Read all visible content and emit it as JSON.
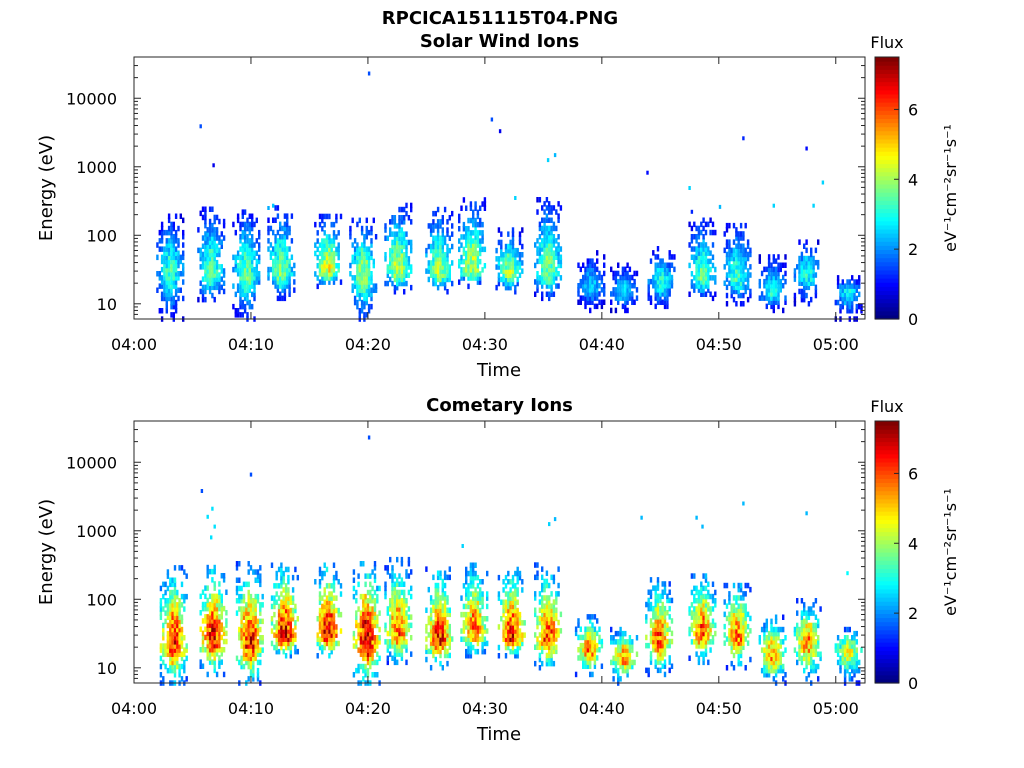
{
  "figure": {
    "title": "RPCICA151115T04.PNG"
  },
  "chart_data": [
    {
      "type": "heatmap",
      "title": "Solar Wind Ions",
      "xlabel": "Time",
      "ylabel": "Energy (eV)",
      "x_tick_labels": [
        "04:00",
        "04:10",
        "04:20",
        "04:30",
        "04:40",
        "04:50",
        "05:00"
      ],
      "x_ticks_minutes": [
        0,
        10,
        20,
        30,
        40,
        50,
        60
      ],
      "xlim_minutes": [
        0,
        62.5
      ],
      "y_scale": "log",
      "ylim": [
        6,
        40000
      ],
      "y_tick_labels": [
        "10",
        "100",
        "1000",
        "10000"
      ],
      "y_ticks": [
        10,
        100,
        1000,
        10000
      ],
      "colorbar": {
        "label": "Flux",
        "unit": "eV⁻¹cm⁻²sr⁻¹s⁻¹",
        "range": [
          0,
          7.5
        ],
        "tick_labels": [
          "0",
          "2",
          "4",
          "6"
        ],
        "ticks": [
          0,
          2,
          4,
          6
        ],
        "colormap": "jet"
      },
      "bursts": [
        {
          "t": 3.0,
          "center": 30,
          "low": 6,
          "high": 200,
          "peak": 3.2
        },
        {
          "t": 6.5,
          "center": 30,
          "low": 10,
          "high": 270,
          "peak": 3.5
        },
        {
          "t": 9.5,
          "center": 28,
          "low": 6,
          "high": 240,
          "peak": 3.6
        },
        {
          "t": 12.5,
          "center": 28,
          "low": 12,
          "high": 270,
          "peak": 3.8
        },
        {
          "t": 16.5,
          "center": 30,
          "low": 18,
          "high": 210,
          "peak": 4.5
        },
        {
          "t": 19.5,
          "center": 28,
          "low": 6,
          "high": 180,
          "peak": 4.0
        },
        {
          "t": 22.5,
          "center": 30,
          "low": 15,
          "high": 300,
          "peak": 4.2
        },
        {
          "t": 26.0,
          "center": 28,
          "low": 15,
          "high": 250,
          "peak": 4.0
        },
        {
          "t": 28.8,
          "center": 32,
          "low": 18,
          "high": 330,
          "peak": 4.3
        },
        {
          "t": 32.0,
          "center": 30,
          "low": 15,
          "high": 120,
          "peak": 4.0
        },
        {
          "t": 35.3,
          "center": 30,
          "low": 12,
          "high": 350,
          "peak": 3.8
        },
        {
          "t": 39.0,
          "center": 18,
          "low": 8,
          "high": 60,
          "peak": 2.5
        },
        {
          "t": 41.8,
          "center": 15,
          "low": 8,
          "high": 40,
          "peak": 2.6
        },
        {
          "t": 45.0,
          "center": 22,
          "low": 8,
          "high": 70,
          "peak": 3.0
        },
        {
          "t": 48.5,
          "center": 25,
          "low": 12,
          "high": 180,
          "peak": 3.5
        },
        {
          "t": 51.5,
          "center": 25,
          "low": 10,
          "high": 180,
          "peak": 3.3
        },
        {
          "t": 54.5,
          "center": 15,
          "low": 8,
          "high": 50,
          "peak": 3.0
        },
        {
          "t": 57.5,
          "center": 28,
          "low": 10,
          "high": 90,
          "peak": 3.0
        },
        {
          "t": 61.0,
          "center": 15,
          "low": 6,
          "high": 25,
          "peak": 2.8
        }
      ],
      "sparse_points": [
        {
          "t": 20.0,
          "e": 23000,
          "v": 1.5
        },
        {
          "t": 5.6,
          "e": 3900,
          "v": 1.5
        },
        {
          "t": 6.7,
          "e": 1050,
          "v": 0.8
        },
        {
          "t": 30.5,
          "e": 4900,
          "v": 1.5
        },
        {
          "t": 31.2,
          "e": 3300,
          "v": 0.8
        },
        {
          "t": 35.3,
          "e": 1250,
          "v": 2.5
        },
        {
          "t": 35.9,
          "e": 1480,
          "v": 2.3
        },
        {
          "t": 43.8,
          "e": 820,
          "v": 1.0
        },
        {
          "t": 47.4,
          "e": 490,
          "v": 2.5
        },
        {
          "t": 52.0,
          "e": 2600,
          "v": 1.2
        },
        {
          "t": 57.4,
          "e": 1850,
          "v": 1.0
        },
        {
          "t": 58.8,
          "e": 590,
          "v": 2.5
        },
        {
          "t": 11.4,
          "e": 250,
          "v": 2.2
        },
        {
          "t": 11.8,
          "e": 270,
          "v": 2.4
        },
        {
          "t": 32.5,
          "e": 350,
          "v": 2.5
        },
        {
          "t": 54.6,
          "e": 270,
          "v": 2.5
        },
        {
          "t": 58.0,
          "e": 270,
          "v": 2.5
        },
        {
          "t": 50.0,
          "e": 260,
          "v": 2.3
        },
        {
          "t": 47.6,
          "e": 220,
          "v": 1.2
        }
      ]
    },
    {
      "type": "heatmap",
      "title": "Cometary Ions",
      "xlabel": "Time",
      "ylabel": "Energy (eV)",
      "x_tick_labels": [
        "04:00",
        "04:10",
        "04:20",
        "04:30",
        "04:40",
        "04:50",
        "05:00"
      ],
      "x_ticks_minutes": [
        0,
        10,
        20,
        30,
        40,
        50,
        60
      ],
      "xlim_minutes": [
        0,
        62.5
      ],
      "y_scale": "log",
      "ylim": [
        6,
        40000
      ],
      "y_tick_labels": [
        "10",
        "100",
        "1000",
        "10000"
      ],
      "y_ticks": [
        10,
        100,
        1000,
        10000
      ],
      "colorbar": {
        "label": "Flux",
        "unit": "eV⁻¹cm⁻²sr⁻¹s⁻¹",
        "range": [
          0,
          7.5
        ],
        "tick_labels": [
          "0",
          "2",
          "4",
          "6"
        ],
        "ticks": [
          0,
          2,
          4,
          6
        ],
        "colormap": "jet"
      },
      "bursts": [
        {
          "t": 3.3,
          "center": 22,
          "low": 6,
          "high": 300,
          "peak": 6.5
        },
        {
          "t": 6.7,
          "center": 28,
          "low": 8,
          "high": 320,
          "peak": 6.6
        },
        {
          "t": 9.8,
          "center": 25,
          "low": 6,
          "high": 330,
          "peak": 6.6
        },
        {
          "t": 12.8,
          "center": 28,
          "low": 15,
          "high": 350,
          "peak": 6.8
        },
        {
          "t": 16.5,
          "center": 30,
          "low": 15,
          "high": 320,
          "peak": 7.0
        },
        {
          "t": 19.8,
          "center": 25,
          "low": 6,
          "high": 370,
          "peak": 7.0
        },
        {
          "t": 22.5,
          "center": 32,
          "low": 12,
          "high": 380,
          "peak": 6.0
        },
        {
          "t": 26.0,
          "center": 26,
          "low": 10,
          "high": 300,
          "peak": 6.5
        },
        {
          "t": 29.0,
          "center": 35,
          "low": 15,
          "high": 380,
          "peak": 5.8
        },
        {
          "t": 32.2,
          "center": 28,
          "low": 15,
          "high": 300,
          "peak": 6.5
        },
        {
          "t": 35.3,
          "center": 28,
          "low": 10,
          "high": 330,
          "peak": 6.3
        },
        {
          "t": 38.8,
          "center": 18,
          "low": 8,
          "high": 60,
          "peak": 5.8
        },
        {
          "t": 41.8,
          "center": 14,
          "low": 6,
          "high": 40,
          "peak": 5.5
        },
        {
          "t": 44.8,
          "center": 25,
          "low": 8,
          "high": 200,
          "peak": 6.0
        },
        {
          "t": 48.5,
          "center": 32,
          "low": 12,
          "high": 250,
          "peak": 6.0
        },
        {
          "t": 51.5,
          "center": 28,
          "low": 10,
          "high": 200,
          "peak": 5.8
        },
        {
          "t": 54.5,
          "center": 15,
          "low": 6,
          "high": 60,
          "peak": 5.5
        },
        {
          "t": 57.5,
          "center": 25,
          "low": 6,
          "high": 100,
          "peak": 5.5
        },
        {
          "t": 61.0,
          "center": 18,
          "low": 6,
          "high": 40,
          "peak": 4.5
        }
      ],
      "sparse_points": [
        {
          "t": 20.0,
          "e": 23000,
          "v": 1.5
        },
        {
          "t": 9.9,
          "e": 6600,
          "v": 1.5
        },
        {
          "t": 5.7,
          "e": 3800,
          "v": 1.5
        },
        {
          "t": 6.2,
          "e": 1600,
          "v": 2.6
        },
        {
          "t": 6.6,
          "e": 2100,
          "v": 2.6
        },
        {
          "t": 6.8,
          "e": 1150,
          "v": 2.6
        },
        {
          "t": 6.5,
          "e": 800,
          "v": 2.6
        },
        {
          "t": 35.4,
          "e": 1250,
          "v": 2.5
        },
        {
          "t": 35.9,
          "e": 1480,
          "v": 2.3
        },
        {
          "t": 43.3,
          "e": 1550,
          "v": 2.3
        },
        {
          "t": 48.0,
          "e": 1550,
          "v": 2.3
        },
        {
          "t": 48.5,
          "e": 1150,
          "v": 2.3
        },
        {
          "t": 52.0,
          "e": 2500,
          "v": 2.3
        },
        {
          "t": 57.4,
          "e": 1800,
          "v": 2.3
        },
        {
          "t": 28.0,
          "e": 600,
          "v": 2.5
        },
        {
          "t": 60.9,
          "e": 240,
          "v": 2.8
        }
      ]
    }
  ]
}
